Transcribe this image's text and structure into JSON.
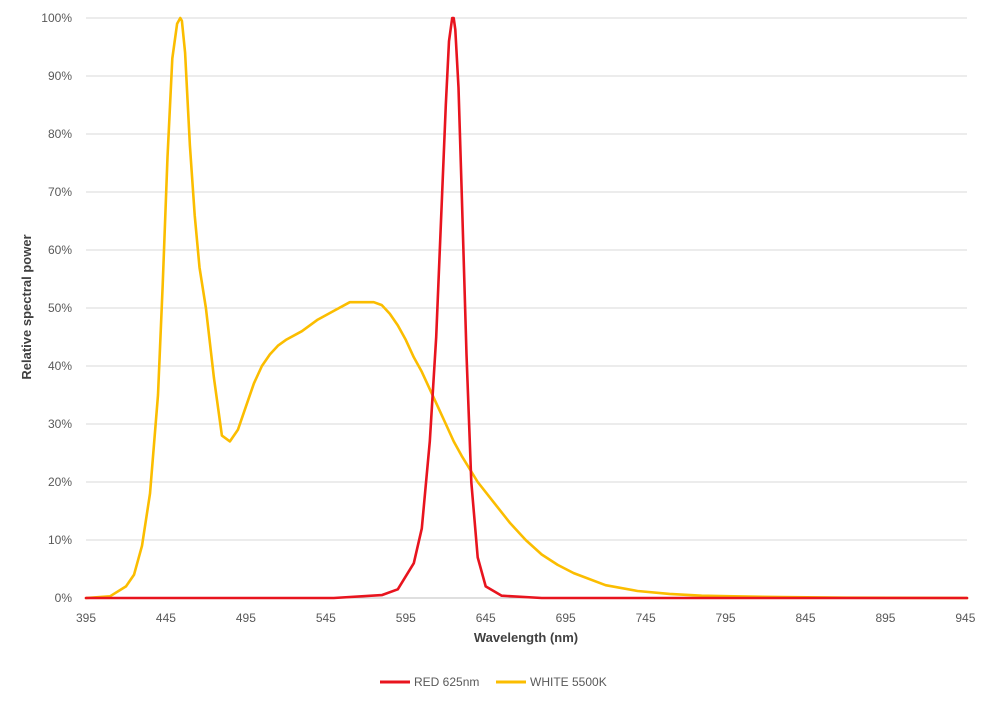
{
  "chart_data": {
    "type": "line",
    "xlabel": "Wavelength (nm)",
    "ylabel": "Relative spectral power",
    "xlim": [
      395,
      946
    ],
    "ylim": [
      0,
      1
    ],
    "x_ticks": [
      "395",
      "445",
      "495",
      "545",
      "595",
      "645",
      "695",
      "745",
      "795",
      "845",
      "895",
      "945"
    ],
    "y_ticks": [
      "0%",
      "10%",
      "20%",
      "30%",
      "40%",
      "50%",
      "60%",
      "70%",
      "80%",
      "90%",
      "100%"
    ],
    "grid": "horizontal",
    "legend_position": "bottom",
    "series": [
      {
        "name": "RED 625nm",
        "color": "#e8141e",
        "x": [
          395,
          550,
          580,
          590,
          600,
          605,
          610,
          614,
          617,
          620,
          622,
          624,
          625,
          626,
          628,
          630,
          633,
          636,
          640,
          645,
          655,
          680,
          946
        ],
        "y": [
          0,
          0,
          0.005,
          0.015,
          0.06,
          0.12,
          0.27,
          0.45,
          0.65,
          0.85,
          0.96,
          1.0,
          1.0,
          0.98,
          0.88,
          0.7,
          0.42,
          0.2,
          0.07,
          0.02,
          0.004,
          0,
          0
        ]
      },
      {
        "name": "WHITE 5500K",
        "color": "#fbbd00",
        "x": [
          395,
          410,
          420,
          425,
          430,
          435,
          440,
          443,
          446,
          449,
          452,
          454,
          455,
          457,
          460,
          463,
          466,
          470,
          475,
          480,
          485,
          490,
          495,
          500,
          505,
          510,
          515,
          520,
          530,
          540,
          550,
          560,
          570,
          575,
          580,
          585,
          590,
          595,
          600,
          605,
          610,
          615,
          620,
          625,
          630,
          640,
          650,
          660,
          670,
          680,
          690,
          700,
          720,
          740,
          760,
          780,
          800,
          830,
          870,
          946
        ],
        "y": [
          0,
          0.003,
          0.02,
          0.04,
          0.09,
          0.18,
          0.35,
          0.54,
          0.76,
          0.93,
          0.99,
          1.0,
          0.995,
          0.94,
          0.78,
          0.66,
          0.57,
          0.5,
          0.38,
          0.28,
          0.27,
          0.29,
          0.33,
          0.37,
          0.4,
          0.42,
          0.435,
          0.445,
          0.46,
          0.48,
          0.495,
          0.51,
          0.51,
          0.51,
          0.505,
          0.49,
          0.47,
          0.445,
          0.415,
          0.39,
          0.36,
          0.33,
          0.3,
          0.27,
          0.245,
          0.2,
          0.165,
          0.13,
          0.1,
          0.075,
          0.057,
          0.043,
          0.022,
          0.012,
          0.007,
          0.004,
          0.003,
          0.0015,
          0.0005,
          0
        ]
      }
    ]
  }
}
